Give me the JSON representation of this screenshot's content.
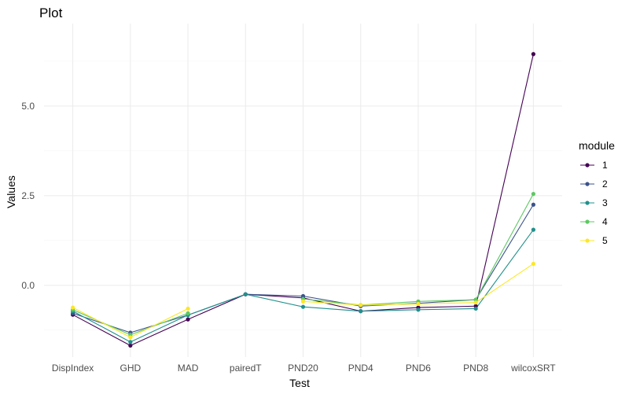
{
  "chart_data": {
    "type": "line",
    "title": "Plot",
    "xlabel": "Test",
    "ylabel": "Values",
    "categories": [
      "DispIndex",
      "GHD",
      "MAD",
      "pairedT",
      "PND20",
      "PND4",
      "PND6",
      "PND8",
      "wilcoxSRT"
    ],
    "ylim": [
      -2.0,
      7.3
    ],
    "yticks": [
      0.0,
      2.5,
      5.0
    ],
    "ytick_labels": [
      "0.0",
      "2.5",
      "5.0"
    ],
    "grid": true,
    "legend": {
      "title": "module",
      "position": "right"
    },
    "series": [
      {
        "name": "1",
        "color": "#440154",
        "values": [
          -0.82,
          -1.68,
          -0.95,
          -0.25,
          -0.35,
          -0.72,
          -0.62,
          -0.58,
          6.45
        ]
      },
      {
        "name": "2",
        "color": "#3b528b",
        "values": [
          -0.78,
          -1.32,
          -0.83,
          -0.25,
          -0.3,
          -0.58,
          -0.5,
          -0.4,
          2.25
        ]
      },
      {
        "name": "3",
        "color": "#21908c",
        "values": [
          -0.72,
          -1.58,
          -0.83,
          -0.25,
          -0.6,
          -0.72,
          -0.68,
          -0.65,
          1.55
        ]
      },
      {
        "name": "4",
        "color": "#5dc863",
        "values": [
          -0.68,
          -1.38,
          -0.78,
          null,
          -0.38,
          -0.55,
          -0.45,
          -0.4,
          2.55
        ]
      },
      {
        "name": "5",
        "color": "#fde725",
        "values": [
          -0.62,
          -1.45,
          -0.65,
          null,
          -0.45,
          -0.55,
          -0.52,
          -0.48,
          0.6
        ]
      }
    ]
  }
}
